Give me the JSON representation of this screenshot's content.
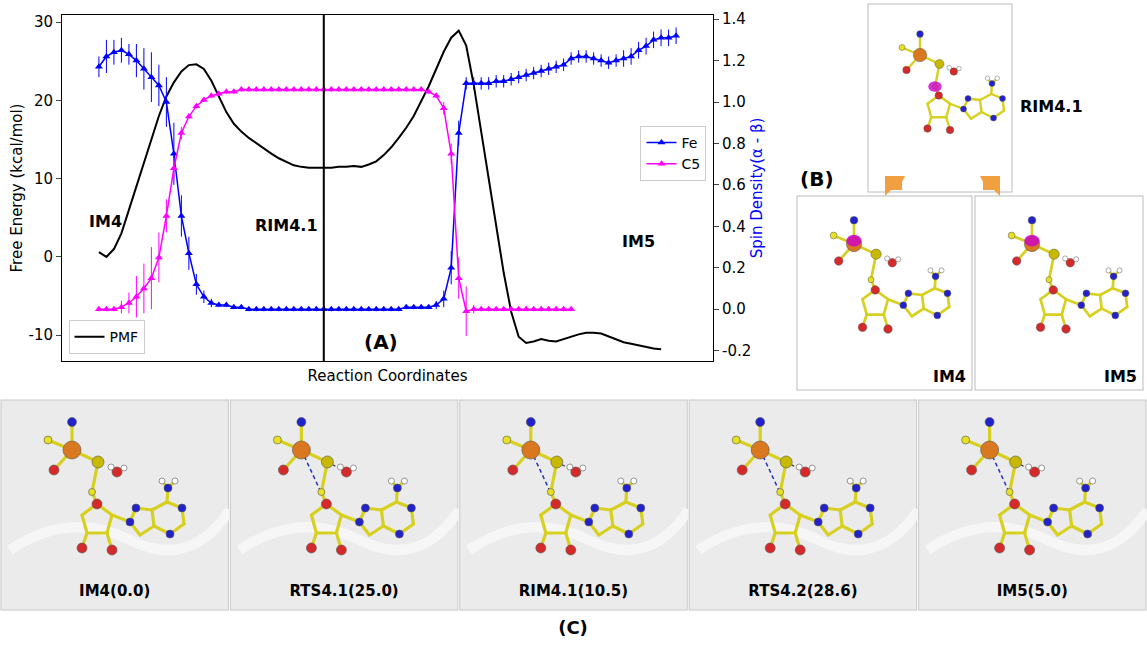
{
  "chart_data": {
    "type": "line",
    "x_label": "Reaction Coordinates",
    "y_label": "Free Energy (kcal/mol)",
    "y2_label": "Spin Density(α - β)",
    "categories": [
      null,
      null,
      null,
      null,
      null,
      null,
      null,
      null,
      null,
      null,
      null,
      null,
      null,
      null,
      null,
      null,
      null,
      null,
      null,
      null,
      null,
      null,
      null,
      null,
      null,
      null,
      null,
      null,
      null,
      null,
      null,
      null,
      null,
      null,
      null,
      null,
      null,
      null,
      null,
      null,
      null,
      null,
      null,
      null,
      null,
      null,
      null,
      null,
      null,
      null,
      null,
      null,
      null,
      null,
      null,
      null,
      null,
      null,
      null,
      null,
      null,
      null,
      null,
      null,
      null,
      null,
      null,
      null,
      null,
      null,
      null,
      null,
      null,
      null,
      null,
      null,
      null,
      null
    ],
    "ylim": [
      -13.3,
      30.9
    ],
    "yticks": [
      -10,
      0,
      10,
      20,
      30
    ],
    "y2lim": [
      -0.25,
      1.42
    ],
    "y2ticks": [
      -0.2,
      {
        "value": 0,
        "label": "0.0"
      },
      0.2,
      0.4,
      0.6,
      0.8,
      {
        "value": 1,
        "label": "1.0"
      },
      1.2,
      1.4
    ],
    "grid": false,
    "vertical_line": 30,
    "annotations": [
      {
        "text": "IM4",
        "x": 0.9,
        "y": 4.5
      },
      {
        "text": "RIM4.1",
        "x": 25,
        "y": 4
      },
      {
        "text": "IM5",
        "x": 72,
        "y": 2
      }
    ],
    "series": [
      {
        "name": "PMF",
        "color": "#000000",
        "line_style": "solid",
        "legend": "lower left",
        "values": [
          0.6,
          0,
          1,
          3,
          6,
          9,
          12,
          15,
          18,
          20.5,
          22.3,
          23.7,
          24.5,
          24.6,
          24,
          22.5,
          20.5,
          18.5,
          17,
          16,
          15.2,
          14.5,
          13.8,
          13.2,
          12.6,
          12.1,
          11.7,
          11.5,
          11.4,
          11.4,
          11.4,
          11.4,
          11.5,
          11.5,
          11.6,
          11.5,
          11.8,
          12.2,
          13,
          14,
          15.2,
          16.5,
          18,
          19.8,
          21.8,
          24,
          26.2,
          28,
          28.9,
          27,
          22,
          16,
          10,
          4,
          -2,
          -7,
          -10.2,
          -11,
          -10.8,
          -10.5,
          -10.7,
          -10.8,
          -10.5,
          -10.2,
          -9.9,
          -9.7,
          -9.7,
          -9.8,
          -10.2,
          -10.6,
          -10.9,
          -11.1,
          -11.3,
          -11.5,
          -11.7,
          -11.8,
          null,
          null
        ]
      },
      {
        "name": "Fe",
        "color": "#0000ff",
        "axis": "y2",
        "marker": "triangle-up",
        "line_style": "solid",
        "legend": "right",
        "values": [
          1.17,
          1.22,
          1.24,
          1.25,
          1.23,
          1.2,
          1.16,
          1.12,
          1.08,
          1.0,
          0.75,
          0.45,
          0.27,
          0.12,
          0.06,
          0.03,
          0.02,
          0.02,
          0.01,
          0.01,
          0,
          0,
          0,
          0,
          0,
          0,
          0,
          0,
          0,
          0,
          0,
          0,
          0,
          0,
          0,
          0,
          0,
          0,
          0,
          0,
          0,
          0.01,
          0.01,
          0.01,
          0.01,
          0.02,
          0.05,
          0.2,
          0.85,
          1.09,
          1.09,
          1.09,
          1.09,
          1.1,
          1.1,
          1.11,
          1.12,
          1.13,
          1.14,
          1.15,
          1.16,
          1.17,
          1.18,
          1.21,
          1.22,
          1.22,
          1.21,
          1.2,
          1.19,
          1.2,
          1.21,
          1.22,
          1.25,
          1.27,
          1.3,
          1.31,
          1.31,
          1.32
        ],
        "errors": [
          0.05,
          0.08,
          0.06,
          0.06,
          0.05,
          0.08,
          0.1,
          0.12,
          0.1,
          0.12,
          0.15,
          0.1,
          0.08,
          0.05,
          0.03,
          0.02,
          0.01,
          0.01,
          0.01,
          0.01,
          0.01,
          0.01,
          0.01,
          0.01,
          0.01,
          0.01,
          0.01,
          0.01,
          0.01,
          0.01,
          0.01,
          0.01,
          0.01,
          0.01,
          0.01,
          0.01,
          0.01,
          0.01,
          0.01,
          0.01,
          0.01,
          0.01,
          0.01,
          0.01,
          0.01,
          0.02,
          0.04,
          0.08,
          0.06,
          0.03,
          0.03,
          0.03,
          0.03,
          0.03,
          0.03,
          0.03,
          0.03,
          0.03,
          0.03,
          0.03,
          0.03,
          0.03,
          0.03,
          0.03,
          0.03,
          0.03,
          0.03,
          0.03,
          0.03,
          0.03,
          0.04,
          0.04,
          0.04,
          0.04,
          0.04,
          0.04,
          0.04,
          0.04
        ]
      },
      {
        "name": "C5",
        "color": "#ff00ff",
        "axis": "y2",
        "marker": "triangle-up",
        "line_style": "solid",
        "legend": "right",
        "values": [
          0,
          0,
          0,
          0.01,
          0.03,
          0.06,
          0.1,
          0.15,
          0.25,
          0.45,
          0.68,
          0.85,
          0.93,
          0.98,
          1.01,
          1.03,
          1.04,
          1.05,
          1.05,
          1.06,
          1.06,
          1.06,
          1.06,
          1.06,
          1.06,
          1.06,
          1.06,
          1.06,
          1.06,
          1.06,
          1.06,
          1.06,
          1.06,
          1.06,
          1.06,
          1.06,
          1.06,
          1.06,
          1.06,
          1.06,
          1.06,
          1.06,
          1.06,
          1.06,
          1.05,
          1.03,
          0.97,
          0.75,
          0.15,
          -0.01,
          0,
          0,
          0,
          0,
          0,
          0,
          0,
          0,
          0,
          0,
          0,
          0,
          0,
          0,
          null,
          null,
          null,
          null,
          null,
          null,
          null,
          null,
          null,
          null,
          null,
          null,
          null,
          null
        ],
        "errors": [
          0.01,
          0.01,
          0.01,
          0.03,
          0.05,
          0.1,
          0.12,
          0.15,
          0.12,
          0.08,
          0.05,
          0.03,
          0.01,
          0.01,
          0.01,
          0.01,
          0.01,
          0.01,
          0.01,
          0.01,
          0.01,
          0.01,
          0.01,
          0.01,
          0.01,
          0.01,
          0.01,
          0.01,
          0.01,
          0.01,
          0.01,
          0.01,
          0.01,
          0.01,
          0.01,
          0.01,
          0.01,
          0.01,
          0.01,
          0.01,
          0.01,
          0.01,
          0.01,
          0.01,
          0.01,
          0.01,
          0.03,
          0.05,
          0.1,
          0.12,
          0.02,
          0.01,
          0.01,
          0.01,
          0.01,
          0.01,
          0.01,
          0.01,
          0.01,
          0.01,
          0.01,
          0.01,
          0.01,
          0.01,
          null,
          null,
          null,
          null,
          null,
          null,
          null,
          null,
          null,
          null,
          null,
          null,
          null,
          null
        ]
      }
    ]
  },
  "panel_labels": {
    "A": "(A)",
    "B": "(B)",
    "C": "(C)"
  },
  "panel_b": {
    "top": "RIM4.1",
    "left": "IM4",
    "right": "IM5"
  },
  "panel_c": [
    "IM4(0.0)",
    "RTS4.1(25.0)",
    "RIM4.1(10.5)",
    "RTS4.2(28.6)",
    "IM5(5.0)"
  ]
}
